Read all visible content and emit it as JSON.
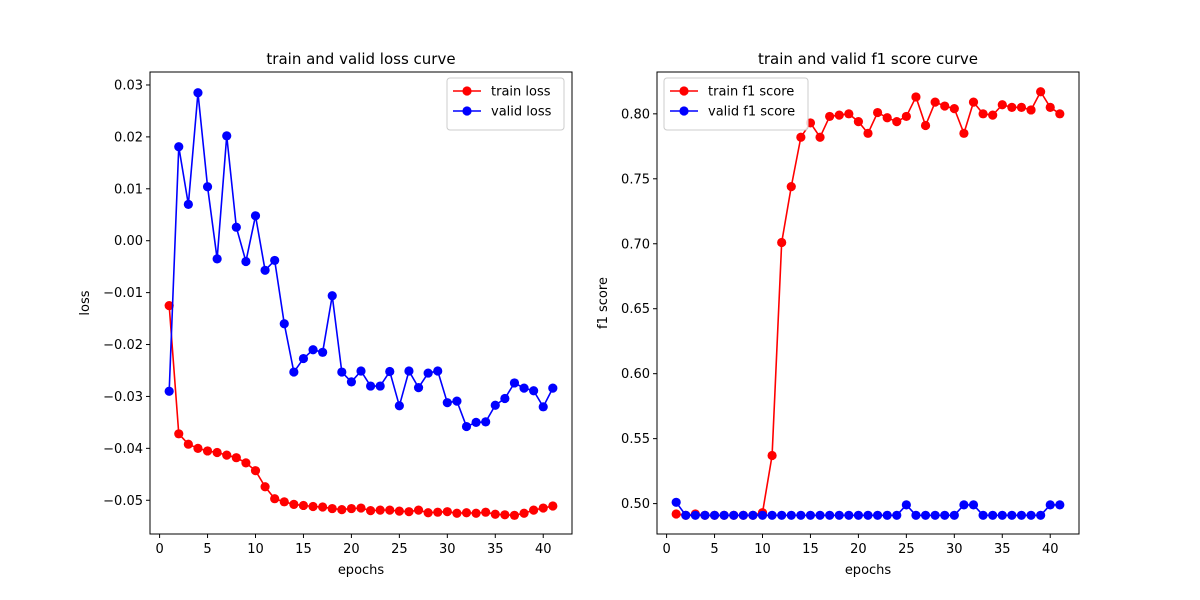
{
  "chart_data": [
    {
      "type": "line",
      "title": "train and valid loss curve",
      "xlabel": "epochs",
      "ylabel": "loss",
      "xlim": [
        -1.0,
        43.0
      ],
      "ylim": [
        -0.0565,
        0.0325
      ],
      "xticks": [
        0,
        5,
        10,
        15,
        20,
        25,
        30,
        35,
        40
      ],
      "yticks": [
        -0.05,
        -0.04,
        -0.03,
        -0.02,
        -0.01,
        0.0,
        0.01,
        0.02,
        0.03
      ],
      "ytick_labels": [
        "−0.05",
        "−0.04",
        "−0.03",
        "−0.02",
        "−0.01",
        "0.00",
        "0.01",
        "0.02",
        "0.03"
      ],
      "legend_position": "top-right",
      "grid": false,
      "x": [
        1,
        2,
        3,
        4,
        5,
        6,
        7,
        8,
        9,
        10,
        11,
        12,
        13,
        14,
        15,
        16,
        17,
        18,
        19,
        20,
        21,
        22,
        23,
        24,
        25,
        26,
        27,
        28,
        29,
        30,
        31,
        32,
        33,
        34,
        35,
        36,
        37,
        38,
        39,
        40,
        41
      ],
      "series": [
        {
          "name": "train loss",
          "color": "#ff0000",
          "values": [
            -0.0125,
            -0.0372,
            -0.0392,
            -0.04,
            -0.0405,
            -0.0408,
            -0.0413,
            -0.0418,
            -0.0428,
            -0.0443,
            -0.0474,
            -0.0497,
            -0.0503,
            -0.0508,
            -0.051,
            -0.0512,
            -0.0513,
            -0.0516,
            -0.0518,
            -0.0516,
            -0.0515,
            -0.052,
            -0.0519,
            -0.0519,
            -0.0521,
            -0.0522,
            -0.0519,
            -0.0524,
            -0.0523,
            -0.0522,
            -0.0525,
            -0.0524,
            -0.0525,
            -0.0523,
            -0.0527,
            -0.0528,
            -0.0529,
            -0.0525,
            -0.0519,
            -0.0515,
            -0.0511
          ]
        },
        {
          "name": "valid loss",
          "color": "#0000ff",
          "values": [
            -0.029,
            0.0181,
            0.007,
            0.0285,
            0.0104,
            -0.0035,
            0.0202,
            0.0026,
            -0.004,
            0.0048,
            -0.0057,
            -0.0038,
            -0.016,
            -0.0253,
            -0.0227,
            -0.021,
            -0.0215,
            -0.0106,
            -0.0253,
            -0.0272,
            -0.0251,
            -0.028,
            -0.028,
            -0.0252,
            -0.0318,
            -0.0251,
            -0.0283,
            -0.0255,
            -0.0251,
            -0.0312,
            -0.0309,
            -0.0358,
            -0.035,
            -0.0349,
            -0.0317,
            -0.0304,
            -0.0274,
            -0.0284,
            -0.0289,
            -0.032,
            -0.0284
          ]
        }
      ]
    },
    {
      "type": "line",
      "title": "train and valid f1 score curve",
      "xlabel": "epochs",
      "ylabel": "f1 score",
      "xlim": [
        -1.0,
        43.0
      ],
      "ylim": [
        0.4766,
        0.8322
      ],
      "xticks": [
        0,
        5,
        10,
        15,
        20,
        25,
        30,
        35,
        40
      ],
      "yticks": [
        0.5,
        0.55,
        0.6,
        0.65,
        0.7,
        0.75,
        0.8
      ],
      "ytick_labels": [
        "0.50",
        "0.55",
        "0.60",
        "0.65",
        "0.70",
        "0.75",
        "0.80"
      ],
      "legend_position": "top-left",
      "grid": false,
      "x": [
        1,
        2,
        3,
        4,
        5,
        6,
        7,
        8,
        9,
        10,
        11,
        12,
        13,
        14,
        15,
        16,
        17,
        18,
        19,
        20,
        21,
        22,
        23,
        24,
        25,
        26,
        27,
        28,
        29,
        30,
        31,
        32,
        33,
        34,
        35,
        36,
        37,
        38,
        39,
        40,
        41
      ],
      "series": [
        {
          "name": "train f1 score",
          "color": "#ff0000",
          "values": [
            0.492,
            0.491,
            0.492,
            0.491,
            0.491,
            0.491,
            0.491,
            0.491,
            0.491,
            0.493,
            0.537,
            0.701,
            0.744,
            0.782,
            0.793,
            0.782,
            0.798,
            0.799,
            0.8,
            0.794,
            0.785,
            0.801,
            0.797,
            0.794,
            0.798,
            0.813,
            0.791,
            0.809,
            0.806,
            0.804,
            0.785,
            0.809,
            0.8,
            0.799,
            0.807,
            0.805,
            0.805,
            0.803,
            0.817,
            0.805,
            0.8
          ]
        },
        {
          "name": "valid f1 score",
          "color": "#0000ff",
          "values": [
            0.501,
            0.491,
            0.491,
            0.491,
            0.491,
            0.491,
            0.491,
            0.491,
            0.491,
            0.491,
            0.491,
            0.491,
            0.491,
            0.491,
            0.491,
            0.491,
            0.491,
            0.491,
            0.491,
            0.491,
            0.491,
            0.491,
            0.491,
            0.491,
            0.499,
            0.491,
            0.491,
            0.491,
            0.491,
            0.491,
            0.499,
            0.499,
            0.491,
            0.491,
            0.491,
            0.491,
            0.491,
            0.491,
            0.491,
            0.499,
            0.499
          ]
        }
      ]
    }
  ]
}
